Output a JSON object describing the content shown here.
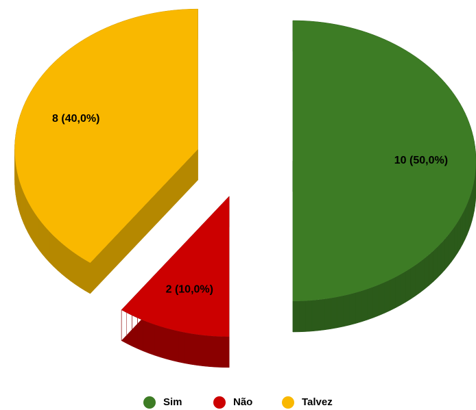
{
  "chart_data": {
    "type": "pie",
    "three_d": true,
    "exploded": true,
    "categories": [
      "Sim",
      "Não",
      "Talvez"
    ],
    "values": [
      10,
      2,
      8
    ],
    "value_labels": [
      "10 (50,0%)",
      "2 (10,0%)",
      "8 (40,0%)"
    ],
    "colors": [
      "#3d7c25",
      "#cc0000",
      "#f9b800"
    ],
    "side_colors": [
      "#2b5a1a",
      "#8a0000",
      "#b58800"
    ],
    "legend": "bottom"
  }
}
